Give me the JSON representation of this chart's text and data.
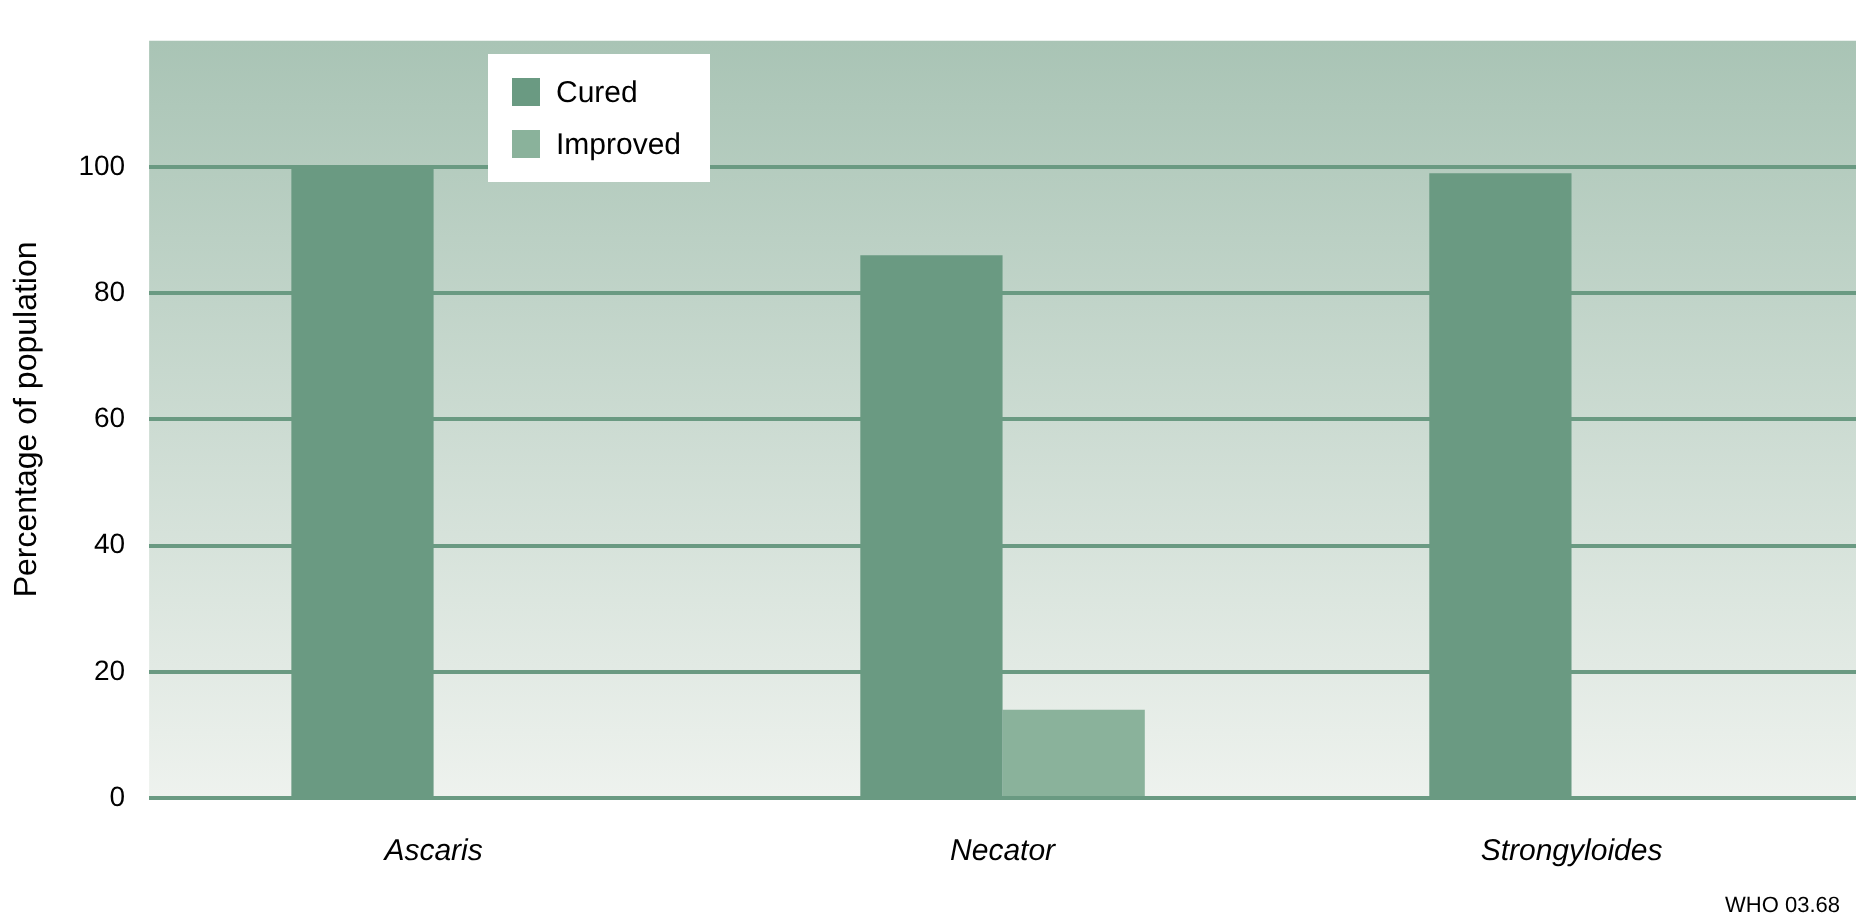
{
  "chart_data": {
    "type": "bar",
    "ylabel": "Percentage of population",
    "categories": [
      "Ascaris",
      "Necator",
      "Strongyloides"
    ],
    "series": [
      {
        "name": "Cured",
        "color": "#6a9a82",
        "values": [
          100,
          86,
          99
        ]
      },
      {
        "name": "Improved",
        "color": "#8ab29b",
        "values": [
          null,
          14,
          null
        ]
      }
    ],
    "ylim": [
      0,
      120
    ],
    "yticks": [
      0,
      20,
      40,
      60,
      80,
      100
    ],
    "grid": "y",
    "legend": "top left",
    "annotations": [
      "WHO 03.68"
    ]
  }
}
